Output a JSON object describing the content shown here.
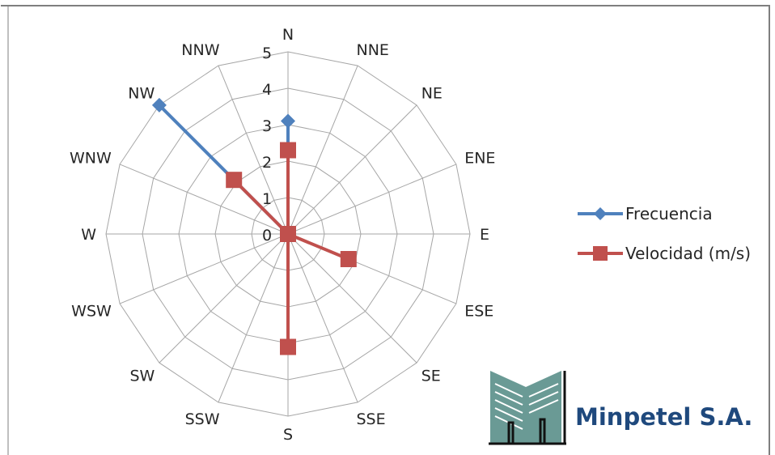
{
  "chart_data": {
    "type": "radar",
    "categories": [
      "N",
      "NNE",
      "NE",
      "ENE",
      "E",
      "ESE",
      "SE",
      "SSE",
      "S",
      "SSW",
      "SW",
      "WSW",
      "W",
      "WNW",
      "NW",
      "NNW"
    ],
    "rlim": [
      0,
      5
    ],
    "radial_ticks": [
      "0",
      "1",
      "2",
      "3",
      "4",
      "5"
    ],
    "grid": true,
    "legend_position": "right",
    "series": [
      {
        "name": "Frecuencia",
        "color": "#4f81bd",
        "marker": "diamond",
        "values": [
          3.1,
          0,
          0,
          0,
          0,
          0,
          0,
          0,
          0,
          0,
          0,
          0,
          0,
          0,
          5,
          0
        ]
      },
      {
        "name": "Velocidad (m/s)",
        "color": "#c0504d",
        "marker": "square",
        "values": [
          2.3,
          0,
          0,
          0,
          0,
          1.8,
          0,
          0,
          3.1,
          0,
          0,
          0,
          0,
          0,
          2.1,
          0
        ]
      }
    ]
  },
  "logo": {
    "text": "Minpetel S.A.",
    "text_color": "#1f497d",
    "mark_color": "#6a9a95"
  }
}
